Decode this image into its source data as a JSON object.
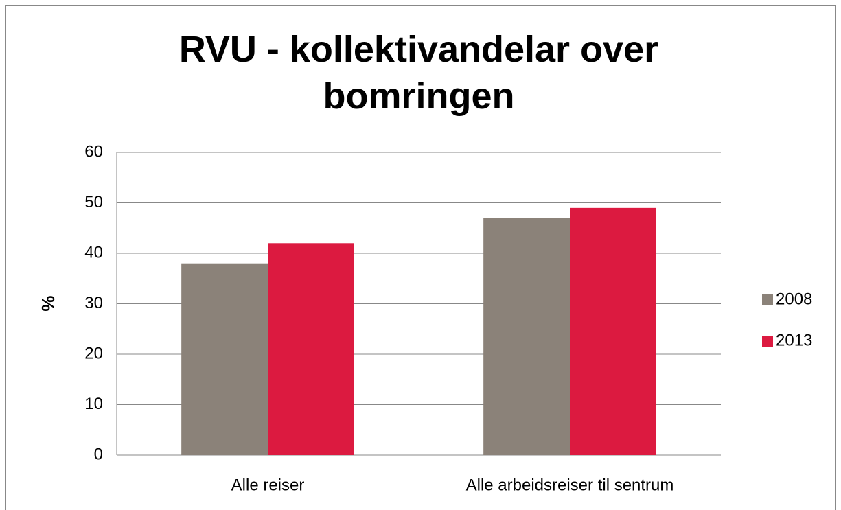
{
  "chart_data": {
    "type": "bar",
    "title": "RVU - kollektivandelar over bomringen",
    "ylabel": "%",
    "categories": [
      "Alle reiser",
      "Alle arbeidsreiser til sentrum"
    ],
    "series": [
      {
        "name": "2008",
        "color": "#8b8279",
        "values": [
          38,
          47
        ]
      },
      {
        "name": "2013",
        "color": "#dc1a40",
        "values": [
          42,
          49
        ]
      }
    ],
    "ylim": [
      0,
      60
    ],
    "yticks": [
      0,
      10,
      20,
      30,
      40,
      50,
      60
    ],
    "grid": true,
    "legend": "right"
  }
}
